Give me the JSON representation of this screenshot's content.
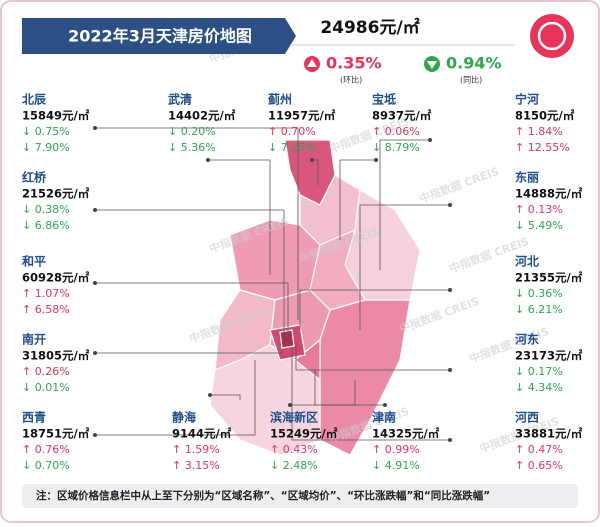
{
  "header": {
    "title": "2022年3月天津房价地图"
  },
  "summary": {
    "price": "24986元/㎡",
    "mom": "0.35%",
    "mom_label": "(环比)",
    "yoy": "0.94%",
    "yoy_label": "(同比)"
  },
  "watermark": "中指数据 CREIS",
  "districts": [
    {
      "name": "北辰",
      "price": "15849元/㎡",
      "mom": "↓ 0.75%",
      "yoy": "↓ 7.90%"
    },
    {
      "name": "武清",
      "price": "14402元/㎡",
      "mom": "↓ 0.20%",
      "yoy": "↓ 5.36%"
    },
    {
      "name": "蓟州",
      "price": "11957元/㎡",
      "mom": "↑ 0.70%",
      "yoy": "↓ 7.25%"
    },
    {
      "name": "宝坻",
      "price": "8937元/㎡",
      "mom": "↑ 0.06%",
      "yoy": "↓ 8.79%"
    },
    {
      "name": "宁河",
      "price": "8150元/㎡",
      "mom": "↑ 1.84%",
      "yoy": "↑ 12.55%"
    },
    {
      "name": "红桥",
      "price": "21526元/㎡",
      "mom": "↓ 0.38%",
      "yoy": "↓ 6.86%"
    },
    {
      "name": "东丽",
      "price": "14888元/㎡",
      "mom": "↑ 0.13%",
      "yoy": "↓ 5.49%"
    },
    {
      "name": "和平",
      "price": "60928元/㎡",
      "mom": "↑ 1.07%",
      "yoy": "↑ 6.58%"
    },
    {
      "name": "河北",
      "price": "21355元/㎡",
      "mom": "↓ 0.36%",
      "yoy": "↓ 6.21%"
    },
    {
      "name": "南开",
      "price": "31805元/㎡",
      "mom": "↑ 0.26%",
      "yoy": "↓ 0.01%"
    },
    {
      "name": "河东",
      "price": "23173元/㎡",
      "mom": "↓ 0.17%",
      "yoy": "↓ 4.34%"
    },
    {
      "name": "西青",
      "price": "18751元/㎡",
      "mom": "↑ 0.76%",
      "yoy": "↓ 0.70%"
    },
    {
      "name": "静海",
      "price": "9144元/㎡",
      "mom": "↑ 1.59%",
      "yoy": "↑ 3.15%"
    },
    {
      "name": "滨海新区",
      "price": "15249元/㎡",
      "mom": "↑ 0.43%",
      "yoy": "↓ 2.48%"
    },
    {
      "name": "津南",
      "price": "14325元/㎡",
      "mom": "↑ 0.99%",
      "yoy": "↓ 4.91%"
    },
    {
      "name": "河西",
      "price": "33881元/㎡",
      "mom": "↑ 0.47%",
      "yoy": "↑ 0.65%"
    }
  ],
  "note": "注：区域价格信息栏中从上至下分别为“区域名称”、“区域均价”、“环比涨跌幅”和“同比涨跌幅”"
}
